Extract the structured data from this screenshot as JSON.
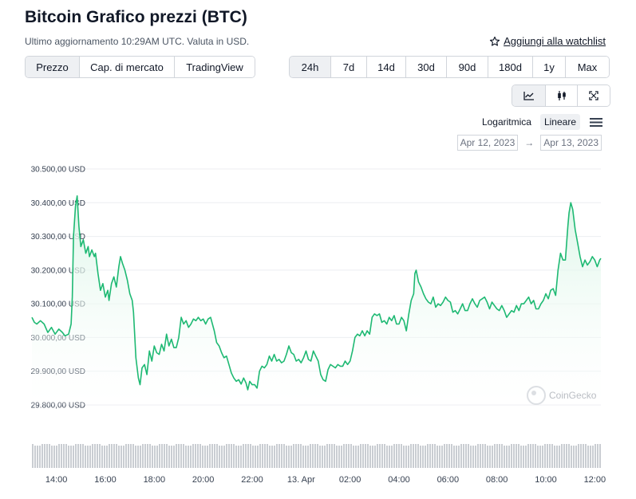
{
  "header": {
    "title": "Bitcoin Grafico prezzi (BTC)",
    "subtitle": "Ultimo aggiornamento 10:29AM UTC. Valuta in USD.",
    "watchlist_label": "Aggiungi alla watchlist"
  },
  "metric_tabs": [
    "Prezzo",
    "Cap. di mercato",
    "TradingView"
  ],
  "period_tabs": [
    "24h",
    "7d",
    "14d",
    "30d",
    "90d",
    "180d",
    "1y",
    "Max"
  ],
  "chart_type_icons": [
    "line-chart-icon",
    "candlestick-icon",
    "fullscreen-icon"
  ],
  "scale": {
    "log_label": "Logaritmica",
    "linear_label": "Lineare",
    "active": "Lineare"
  },
  "date_range": {
    "from": "Apr 12, 2023",
    "arrow": "→",
    "to": "Apr 13, 2023"
  },
  "watermark": "CoinGecko",
  "colors": {
    "line": "#1eb973",
    "fill": "#d9f5e6",
    "volume": "#c9cdd2",
    "grid": "#eceef1"
  },
  "chart_data": {
    "type": "area",
    "title": "Bitcoin Grafico prezzi (BTC)",
    "ylim": [
      29800,
      30500
    ],
    "y_ticks": [
      30500,
      30400,
      30300,
      30200,
      30100,
      30000,
      29900,
      29800
    ],
    "y_tick_labels": [
      "30.500,00 USD",
      "30.400,00 USD",
      "30.300,00 USD",
      "30.200,00 USD",
      "30.100,00 USD",
      "30.000,00 USD",
      "29.900,00 USD",
      "29.800,00 USD"
    ],
    "x_range": [
      13.0,
      36.25
    ],
    "x_ticks": [
      14,
      16,
      18,
      20,
      22,
      24,
      26,
      28,
      30,
      32,
      34,
      36
    ],
    "x_tick_labels": [
      "14:00",
      "16:00",
      "18:00",
      "20:00",
      "22:00",
      "13. Apr",
      "02:00",
      "04:00",
      "06:00",
      "08:00",
      "10:00",
      "12:00"
    ],
    "x_unit": "hours since 00:00 Apr 12 (UTC)",
    "series": [
      {
        "name": "BTC price (USD)",
        "points": [
          [
            13.0,
            30060
          ],
          [
            13.1,
            30045
          ],
          [
            13.2,
            30040
          ],
          [
            13.35,
            30050
          ],
          [
            13.5,
            30040
          ],
          [
            13.65,
            30015
          ],
          [
            13.8,
            30030
          ],
          [
            13.95,
            30010
          ],
          [
            14.1,
            30025
          ],
          [
            14.25,
            30015
          ],
          [
            14.35,
            30005
          ],
          [
            14.5,
            30010
          ],
          [
            14.6,
            30040
          ],
          [
            14.65,
            30120
          ],
          [
            14.7,
            30300
          ],
          [
            14.78,
            30390
          ],
          [
            14.85,
            30420
          ],
          [
            14.92,
            30330
          ],
          [
            15.0,
            30270
          ],
          [
            15.1,
            30290
          ],
          [
            15.2,
            30250
          ],
          [
            15.3,
            30270
          ],
          [
            15.35,
            30240
          ],
          [
            15.45,
            30260
          ],
          [
            15.55,
            30240
          ],
          [
            15.6,
            30250
          ],
          [
            15.7,
            30190
          ],
          [
            15.8,
            30140
          ],
          [
            15.9,
            30160
          ],
          [
            16.0,
            30120
          ],
          [
            16.1,
            30140
          ],
          [
            16.15,
            30110
          ],
          [
            16.25,
            30160
          ],
          [
            16.35,
            30180
          ],
          [
            16.45,
            30150
          ],
          [
            16.55,
            30210
          ],
          [
            16.62,
            30240
          ],
          [
            16.7,
            30220
          ],
          [
            16.8,
            30200
          ],
          [
            16.9,
            30170
          ],
          [
            17.0,
            30130
          ],
          [
            17.1,
            30110
          ],
          [
            17.15,
            30075
          ],
          [
            17.25,
            29940
          ],
          [
            17.35,
            29880
          ],
          [
            17.42,
            29860
          ],
          [
            17.5,
            29910
          ],
          [
            17.6,
            29920
          ],
          [
            17.7,
            29890
          ],
          [
            17.8,
            29960
          ],
          [
            17.9,
            29930
          ],
          [
            18.0,
            29975
          ],
          [
            18.1,
            29955
          ],
          [
            18.2,
            29950
          ],
          [
            18.3,
            29980
          ],
          [
            18.4,
            29960
          ],
          [
            18.5,
            30010
          ],
          [
            18.6,
            29975
          ],
          [
            18.7,
            29995
          ],
          [
            18.8,
            29970
          ],
          [
            18.9,
            29970
          ],
          [
            19.0,
            30000
          ],
          [
            19.1,
            30060
          ],
          [
            19.2,
            30040
          ],
          [
            19.3,
            30050
          ],
          [
            19.4,
            30030
          ],
          [
            19.5,
            30040
          ],
          [
            19.6,
            30055
          ],
          [
            19.7,
            30050
          ],
          [
            19.8,
            30060
          ],
          [
            19.9,
            30050
          ],
          [
            20.0,
            30055
          ],
          [
            20.1,
            30040
          ],
          [
            20.2,
            30055
          ],
          [
            20.3,
            30060
          ],
          [
            20.45,
            30020
          ],
          [
            20.55,
            29985
          ],
          [
            20.65,
            29975
          ],
          [
            20.75,
            29955
          ],
          [
            20.85,
            29940
          ],
          [
            20.95,
            29945
          ],
          [
            21.05,
            29920
          ],
          [
            21.15,
            29895
          ],
          [
            21.25,
            29880
          ],
          [
            21.35,
            29870
          ],
          [
            21.45,
            29875
          ],
          [
            21.55,
            29862
          ],
          [
            21.65,
            29880
          ],
          [
            21.75,
            29865
          ],
          [
            21.82,
            29845
          ],
          [
            21.9,
            29870
          ],
          [
            22.0,
            29860
          ],
          [
            22.1,
            29860
          ],
          [
            22.2,
            29850
          ],
          [
            22.3,
            29900
          ],
          [
            22.4,
            29915
          ],
          [
            22.5,
            29910
          ],
          [
            22.6,
            29920
          ],
          [
            22.7,
            29945
          ],
          [
            22.8,
            29930
          ],
          [
            22.9,
            29950
          ],
          [
            23.0,
            29930
          ],
          [
            23.1,
            29935
          ],
          [
            23.2,
            29925
          ],
          [
            23.3,
            29930
          ],
          [
            23.4,
            29950
          ],
          [
            23.5,
            29975
          ],
          [
            23.6,
            29955
          ],
          [
            23.7,
            29950
          ],
          [
            23.8,
            29930
          ],
          [
            23.9,
            29935
          ],
          [
            24.0,
            29925
          ],
          [
            24.1,
            29940
          ],
          [
            24.2,
            29960
          ],
          [
            24.3,
            29935
          ],
          [
            24.4,
            29930
          ],
          [
            24.5,
            29960
          ],
          [
            24.6,
            29945
          ],
          [
            24.7,
            29930
          ],
          [
            24.8,
            29890
          ],
          [
            24.9,
            29875
          ],
          [
            25.0,
            29870
          ],
          [
            25.1,
            29905
          ],
          [
            25.2,
            29920
          ],
          [
            25.3,
            29915
          ],
          [
            25.4,
            29910
          ],
          [
            25.5,
            29920
          ],
          [
            25.6,
            29915
          ],
          [
            25.7,
            29915
          ],
          [
            25.8,
            29930
          ],
          [
            25.9,
            29920
          ],
          [
            26.0,
            29930
          ],
          [
            26.1,
            29960
          ],
          [
            26.2,
            30000
          ],
          [
            26.3,
            30010
          ],
          [
            26.4,
            30005
          ],
          [
            26.5,
            30020
          ],
          [
            26.6,
            30005
          ],
          [
            26.7,
            30020
          ],
          [
            26.8,
            30010
          ],
          [
            26.9,
            30060
          ],
          [
            27.0,
            30070
          ],
          [
            27.1,
            30065
          ],
          [
            27.2,
            30070
          ],
          [
            27.3,
            30045
          ],
          [
            27.4,
            30050
          ],
          [
            27.5,
            30040
          ],
          [
            27.6,
            30060
          ],
          [
            27.7,
            30050
          ],
          [
            27.8,
            30065
          ],
          [
            27.9,
            30040
          ],
          [
            28.0,
            30040
          ],
          [
            28.1,
            30060
          ],
          [
            28.2,
            30050
          ],
          [
            28.3,
            30020
          ],
          [
            28.4,
            30070
          ],
          [
            28.5,
            30110
          ],
          [
            28.6,
            30130
          ],
          [
            28.65,
            30190
          ],
          [
            28.7,
            30200
          ],
          [
            28.8,
            30165
          ],
          [
            28.9,
            30150
          ],
          [
            29.0,
            30130
          ],
          [
            29.1,
            30115
          ],
          [
            29.2,
            30105
          ],
          [
            29.3,
            30100
          ],
          [
            29.4,
            30120
          ],
          [
            29.5,
            30090
          ],
          [
            29.6,
            30100
          ],
          [
            29.7,
            30095
          ],
          [
            29.8,
            30105
          ],
          [
            29.9,
            30120
          ],
          [
            30.0,
            30110
          ],
          [
            30.1,
            30105
          ],
          [
            30.2,
            30075
          ],
          [
            30.3,
            30080
          ],
          [
            30.4,
            30070
          ],
          [
            30.5,
            30085
          ],
          [
            30.6,
            30100
          ],
          [
            30.7,
            30080
          ],
          [
            30.8,
            30080
          ],
          [
            30.9,
            30100
          ],
          [
            31.0,
            30115
          ],
          [
            31.1,
            30100
          ],
          [
            31.2,
            30090
          ],
          [
            31.3,
            30110
          ],
          [
            31.4,
            30115
          ],
          [
            31.5,
            30120
          ],
          [
            31.6,
            30105
          ],
          [
            31.7,
            30085
          ],
          [
            31.8,
            30105
          ],
          [
            31.9,
            30095
          ],
          [
            32.0,
            30085
          ],
          [
            32.1,
            30080
          ],
          [
            32.2,
            30095
          ],
          [
            32.3,
            30080
          ],
          [
            32.4,
            30060
          ],
          [
            32.5,
            30070
          ],
          [
            32.6,
            30080
          ],
          [
            32.7,
            30075
          ],
          [
            32.8,
            30095
          ],
          [
            32.9,
            30080
          ],
          [
            33.0,
            30100
          ],
          [
            33.1,
            30100
          ],
          [
            33.2,
            30110
          ],
          [
            33.3,
            30120
          ],
          [
            33.4,
            30100
          ],
          [
            33.5,
            30110
          ],
          [
            33.6,
            30085
          ],
          [
            33.7,
            30085
          ],
          [
            33.8,
            30100
          ],
          [
            33.9,
            30110
          ],
          [
            34.0,
            30130
          ],
          [
            34.1,
            30115
          ],
          [
            34.2,
            30140
          ],
          [
            34.3,
            30145
          ],
          [
            34.4,
            30125
          ],
          [
            34.5,
            30200
          ],
          [
            34.6,
            30250
          ],
          [
            34.7,
            30230
          ],
          [
            34.8,
            30230
          ],
          [
            34.9,
            30330
          ],
          [
            34.95,
            30370
          ],
          [
            35.02,
            30400
          ],
          [
            35.1,
            30380
          ],
          [
            35.2,
            30320
          ],
          [
            35.3,
            30280
          ],
          [
            35.4,
            30240
          ],
          [
            35.5,
            30210
          ],
          [
            35.6,
            30230
          ],
          [
            35.7,
            30215
          ],
          [
            35.8,
            30225
          ],
          [
            35.9,
            30240
          ],
          [
            36.0,
            30230
          ],
          [
            36.1,
            30210
          ],
          [
            36.2,
            30230
          ],
          [
            36.25,
            30235
          ]
        ]
      }
    ]
  }
}
